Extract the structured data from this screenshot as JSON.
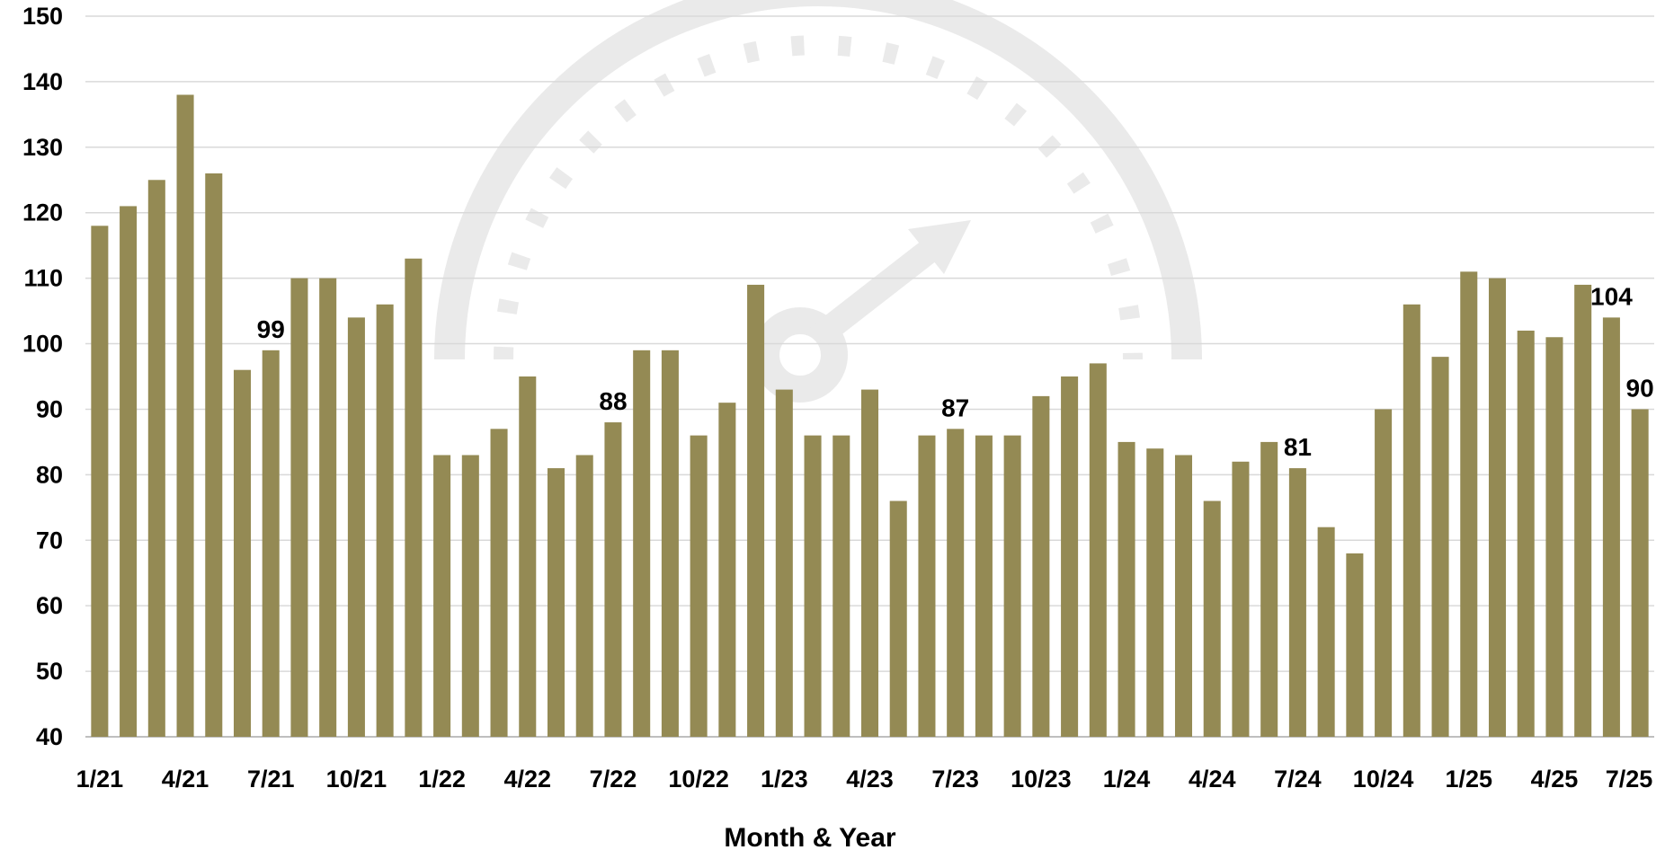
{
  "chart_data": {
    "type": "bar",
    "xlabel": "Month & Year",
    "ylabel": "",
    "ylim": [
      40,
      150
    ],
    "yticks": [
      40,
      50,
      60,
      70,
      80,
      90,
      100,
      110,
      120,
      130,
      140,
      150
    ],
    "grid": true,
    "bar_color": "#948a54",
    "categories": [
      "1/21",
      "2/21",
      "3/21",
      "4/21",
      "5/21",
      "6/21",
      "7/21",
      "8/21",
      "9/21",
      "10/21",
      "11/21",
      "12/21",
      "1/22",
      "2/22",
      "3/22",
      "4/22",
      "5/22",
      "6/22",
      "7/22",
      "8/22",
      "9/22",
      "10/22",
      "11/22",
      "12/22",
      "1/23",
      "2/23",
      "3/23",
      "4/23",
      "5/23",
      "6/23",
      "7/23",
      "8/23",
      "9/23",
      "10/23",
      "11/23",
      "12/23",
      "1/24",
      "2/24",
      "3/24",
      "4/24",
      "5/24",
      "6/24",
      "7/24",
      "8/24",
      "9/24",
      "10/24",
      "11/24",
      "12/24",
      "1/25",
      "2/25",
      "3/25",
      "4/25",
      "5/25",
      "6/25",
      "7/25"
    ],
    "values": [
      118,
      121,
      125,
      138,
      126,
      96,
      99,
      110,
      110,
      104,
      106,
      113,
      83,
      83,
      87,
      95,
      81,
      83,
      88,
      99,
      99,
      86,
      91,
      109,
      93,
      86,
      86,
      93,
      76,
      86,
      87,
      86,
      86,
      92,
      95,
      97,
      85,
      84,
      83,
      76,
      82,
      85,
      81,
      72,
      68,
      90,
      106,
      98,
      111,
      110,
      102,
      101,
      109,
      104,
      90
    ],
    "tick_labels": [
      "1/21",
      "4/21",
      "7/21",
      "10/21",
      "1/22",
      "4/22",
      "7/22",
      "10/22",
      "1/23",
      "4/23",
      "7/23",
      "10/23",
      "1/24",
      "4/24",
      "7/24",
      "10/24",
      "1/25",
      "4/25",
      "7/25"
    ],
    "data_labels": [
      {
        "category": "7/21",
        "text": "99"
      },
      {
        "category": "7/22",
        "text": "88"
      },
      {
        "category": "7/23",
        "text": "87"
      },
      {
        "category": "7/24",
        "text": "81"
      },
      {
        "category": "6/25",
        "text": "104"
      },
      {
        "category": "7/25",
        "text": "90"
      }
    ]
  }
}
